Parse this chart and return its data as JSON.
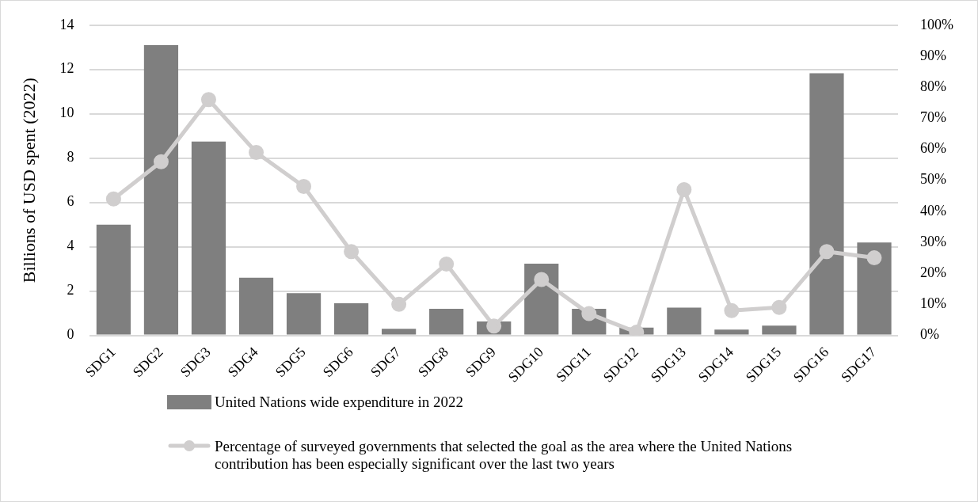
{
  "chart_data": {
    "type": "bar",
    "ylabel": "Billions of USD spent (2022)",
    "categories": [
      "SDG1",
      "SDG2",
      "SDG3",
      "SDG4",
      "SDG5",
      "SDG6",
      "SDG7",
      "SDG8",
      "SDG9",
      "SDG10",
      "SDG11",
      "SDG12",
      "SDG13",
      "SDG14",
      "SDG15",
      "SDG16",
      "SDG17"
    ],
    "series": [
      {
        "name": "United Nations wide expenditure in 2022",
        "color": "#7f7f7f",
        "values": [
          5.0,
          13.1,
          8.75,
          2.6,
          1.9,
          1.45,
          0.3,
          1.2,
          0.63,
          3.24,
          1.2,
          0.35,
          1.25,
          0.26,
          0.44,
          11.83,
          4.19
        ]
      },
      {
        "name": "Percentage of surveyed governments that selected the goal as the area where the United Nations contribution has been especially significant over the last two years",
        "type": "line",
        "axis": "y2",
        "color": "#d0cece",
        "values": [
          44,
          56,
          76,
          59,
          48,
          27,
          10,
          23,
          3,
          18,
          7,
          1,
          47,
          8,
          9,
          27,
          25
        ]
      }
    ],
    "ylim": [
      0,
      14
    ],
    "yticks": [
      0,
      2,
      4,
      6,
      8,
      10,
      12,
      14
    ],
    "y2lim": [
      0,
      100
    ],
    "y2ticks": [
      {
        "value": 0,
        "label": "0%"
      },
      {
        "value": 10,
        "label": "10%"
      },
      {
        "value": 20,
        "label": "20%"
      },
      {
        "value": 30,
        "label": "30%"
      },
      {
        "value": 40,
        "label": "40%"
      },
      {
        "value": 50,
        "label": "50%"
      },
      {
        "value": 60,
        "label": "60%"
      },
      {
        "value": 70,
        "label": "70%"
      },
      {
        "value": 80,
        "label": "80%"
      },
      {
        "value": 90,
        "label": "90%"
      },
      {
        "value": 100,
        "label": "100%"
      }
    ],
    "grid": "y",
    "legend": "bottom",
    "marker": "circle",
    "line_style": "solid"
  }
}
